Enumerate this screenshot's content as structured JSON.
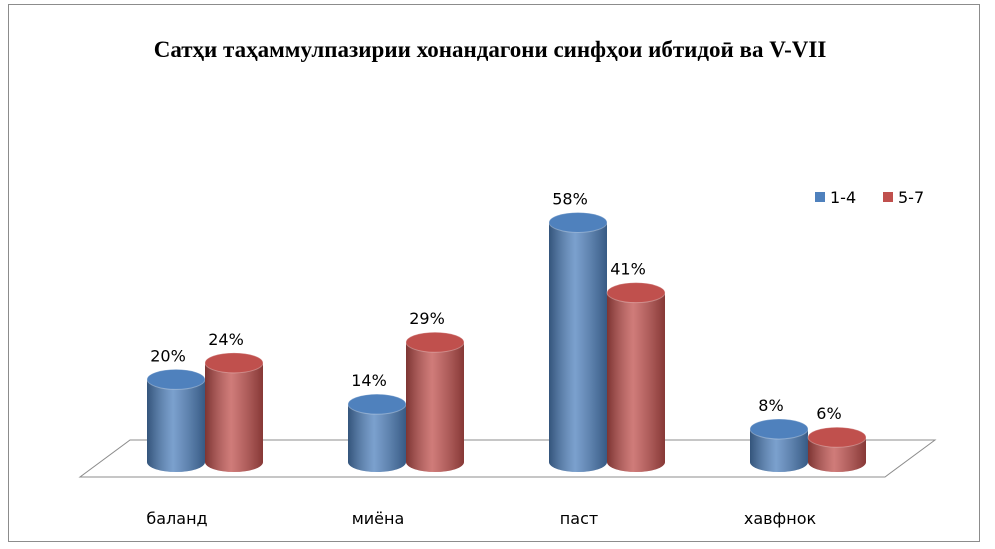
{
  "chart_data": {
    "type": "bar3d",
    "title": "Сатҳи таҳаммулпазирии хонандагони синфҳои ибтидоӣ ва V-VII",
    "categories": [
      "баланд",
      "миёна",
      "паст",
      "хавфнок"
    ],
    "series": [
      {
        "name": "1-4",
        "color": "#4f81bd",
        "values": [
          20,
          14,
          58,
          8
        ],
        "value_labels": [
          "20%",
          "14%",
          "58%",
          "8%"
        ]
      },
      {
        "name": "5-7",
        "color": "#c0504d",
        "values": [
          24,
          29,
          41,
          6
        ],
        "value_labels": [
          "24%",
          "29%",
          "41%",
          "6%"
        ]
      }
    ],
    "legend": "right"
  }
}
